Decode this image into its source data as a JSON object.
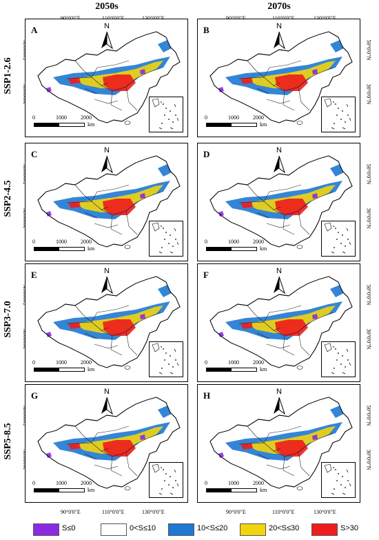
{
  "columns": [
    "2050s",
    "2070s"
  ],
  "top_longitudes": [
    "90°0'0\"E",
    "110°0'0\"E",
    "130°0'0\"E"
  ],
  "bottom_longitudes": [
    "90°0'0\"E",
    "110°0'0\"E",
    "130°0'0\"E"
  ],
  "latitudes": [
    "50°0'0\"N",
    "30°0'0\"N"
  ],
  "rows": [
    {
      "scenario": "SSP1-2.6",
      "panels": [
        "A",
        "B"
      ]
    },
    {
      "scenario": "SSP2-4.5",
      "panels": [
        "C",
        "D"
      ]
    },
    {
      "scenario": "SSP3-7.0",
      "panels": [
        "E",
        "F"
      ]
    },
    {
      "scenario": "SSP5-8.5",
      "panels": [
        "G",
        "H"
      ]
    }
  ],
  "north_label": "N",
  "scale": {
    "ticks": [
      "0",
      "1000",
      "2000"
    ],
    "unit": "km"
  },
  "legend": [
    {
      "label": "S≤0",
      "color": "#8a2be2"
    },
    {
      "label": "0<S≤10",
      "color": "#ffffff"
    },
    {
      "label": "10<S≤20",
      "color": "#1f78d1"
    },
    {
      "label": "20<S≤30",
      "color": "#f2d40f"
    },
    {
      "label": "S>30",
      "color": "#ee1c1c"
    }
  ]
}
